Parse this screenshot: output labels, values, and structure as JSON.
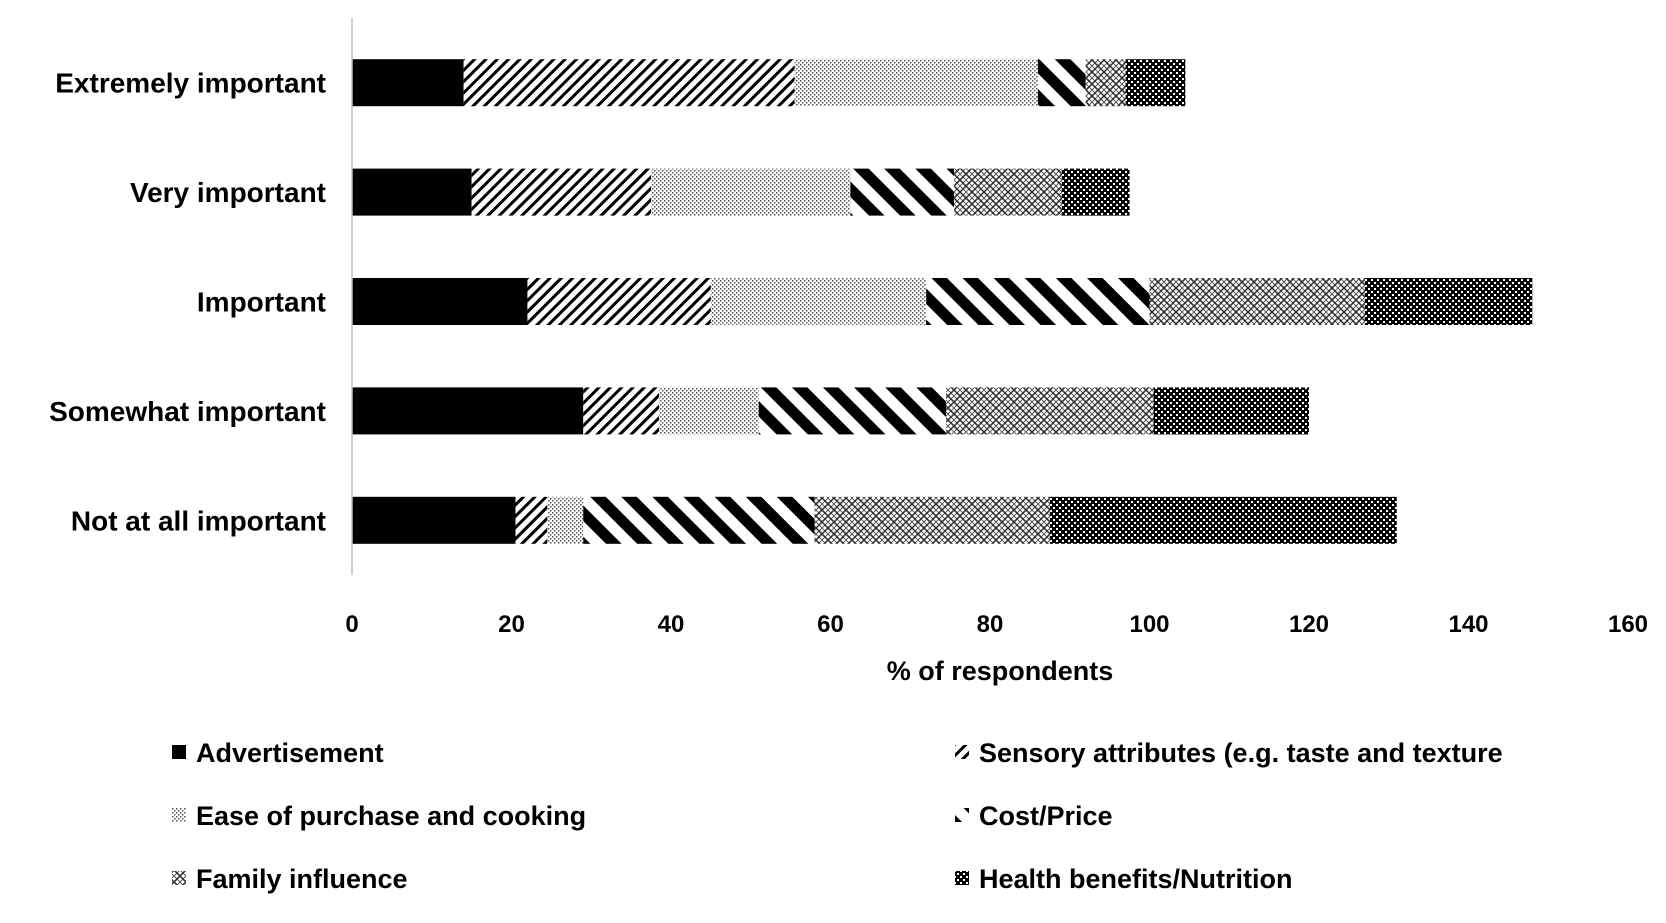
{
  "chart_data": {
    "type": "bar",
    "orientation": "horizontal",
    "stacked": true,
    "categories": [
      "Extremely important",
      "Very important",
      "Important",
      "Somewhat important",
      "Not at all important"
    ],
    "series": [
      {
        "name": "Advertisement",
        "pattern": "solid-black-icon",
        "values": [
          14,
          15,
          22,
          29,
          20.5
        ]
      },
      {
        "name": "Sensory attributes (e.g. taste and texture",
        "pattern": "diagonal-hatch-icon",
        "values": [
          41.5,
          22.5,
          23,
          9.5,
          4
        ]
      },
      {
        "name": "Ease of purchase and cooking",
        "pattern": "dotted-fill-icon",
        "values": [
          30.5,
          25,
          27,
          12.5,
          4.5
        ]
      },
      {
        "name": "Cost/Price",
        "pattern": "wide-diagonal-stripe-icon",
        "values": [
          6,
          13,
          28,
          23.5,
          29
        ]
      },
      {
        "name": "Family influence",
        "pattern": "crosshatch-icon",
        "values": [
          5,
          13.5,
          27,
          26,
          29.5
        ]
      },
      {
        "name": "Health benefits/Nutrition",
        "pattern": "dark-check-icon",
        "values": [
          7.5,
          8.5,
          21,
          19.5,
          43.5
        ]
      }
    ],
    "xlabel": "% of respondents",
    "ylabel": "",
    "xlim": [
      0,
      160
    ],
    "xticks": [
      "0",
      "20",
      "40",
      "60",
      "80",
      "100",
      "120",
      "140",
      "160"
    ],
    "grid": false,
    "legend_position": "bottom"
  }
}
